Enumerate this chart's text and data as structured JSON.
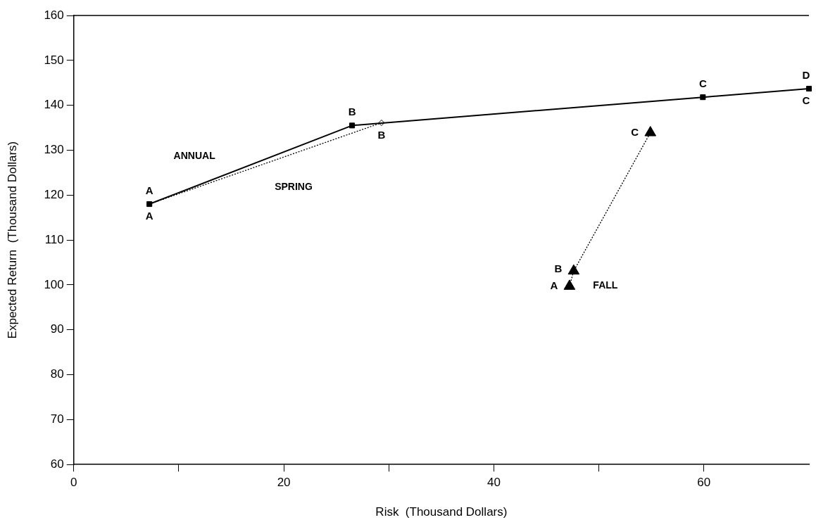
{
  "chart_data": {
    "type": "line",
    "xlabel": "Risk  (Thousand Dollars)",
    "ylabel": "Expected Return  (Thousand Dollars)",
    "xlim": [
      0,
      70
    ],
    "xticks": [
      0,
      {
        "value": 10,
        "label": null
      },
      20,
      {
        "value": 30,
        "label": null
      },
      40,
      {
        "value": 50,
        "label": null
      },
      60
    ],
    "ylim": [
      60,
      160
    ],
    "yticks": [
      60,
      70,
      80,
      90,
      100,
      110,
      120,
      130,
      140,
      150,
      160
    ],
    "grid": false,
    "legend": false,
    "series": [
      {
        "name": "ANNUAL",
        "color": "#000000",
        "x": [
          7.2,
          26.5,
          59.9,
          70
        ],
        "values": [
          118,
          135.5,
          141.8,
          143.7
        ],
        "marker": "square",
        "line_style": "solid"
      },
      {
        "name": "SPRING",
        "color": "#000000",
        "x": [
          7.2,
          29.3
        ],
        "values": [
          118,
          136.1
        ],
        "marker": "diamond",
        "line_style": "dotted"
      },
      {
        "name": "FALL",
        "color": "#000000",
        "x": [
          47.2,
          47.6,
          54.9
        ],
        "values": [
          99.7,
          103.1,
          133.9
        ],
        "marker": "triangle",
        "line_style": "dotted"
      }
    ],
    "annotations": [
      {
        "text": "A",
        "x": 7.2,
        "y": 118
      },
      {
        "text": "A",
        "x": 7.2,
        "y": 118
      },
      {
        "text": "B",
        "x": 26.5,
        "y": 135.5
      },
      {
        "text": "B",
        "x": 29.3,
        "y": 136.1
      },
      {
        "text": "C",
        "x": 59.9,
        "y": 141.8
      },
      {
        "text": "D",
        "x": 70,
        "y": 143.7
      },
      {
        "text": "C",
        "x": 70,
        "y": 143.7
      },
      {
        "text": "C",
        "x": 54.9,
        "y": 133.9
      },
      {
        "text": "B",
        "x": 47.6,
        "y": 103.1
      },
      {
        "text": "A",
        "x": 47.2,
        "y": 99.7
      }
    ]
  }
}
